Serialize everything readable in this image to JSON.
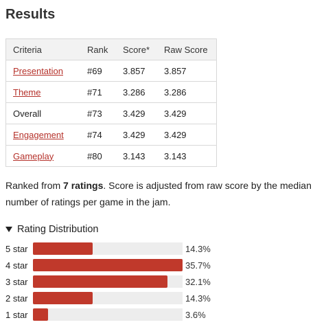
{
  "results": {
    "title": "Results",
    "headers": [
      "Criteria",
      "Rank",
      "Score*",
      "Raw Score"
    ],
    "rows": [
      {
        "criteria": "Presentation",
        "link": true,
        "rank": "#69",
        "score": "3.857",
        "raw": "3.857"
      },
      {
        "criteria": "Theme",
        "link": true,
        "rank": "#71",
        "score": "3.286",
        "raw": "3.286"
      },
      {
        "criteria": "Overall",
        "link": false,
        "rank": "#73",
        "score": "3.429",
        "raw": "3.429"
      },
      {
        "criteria": "Engagement",
        "link": true,
        "rank": "#74",
        "score": "3.429",
        "raw": "3.429"
      },
      {
        "criteria": "Gameplay",
        "link": true,
        "rank": "#80",
        "score": "3.143",
        "raw": "3.143"
      }
    ]
  },
  "summary": {
    "prefix": "Ranked from ",
    "ratings": "7 ratings",
    "suffix": ". Score is adjusted from raw score by the median number of ratings per game in the jam."
  },
  "distribution": {
    "title": "Rating Distribution",
    "max_percent": 35.7,
    "bar_color": "#c0392b",
    "rows": [
      {
        "label": "5 star",
        "percent": 14.3,
        "percent_text": "14.3%"
      },
      {
        "label": "4 star",
        "percent": 35.7,
        "percent_text": "35.7%"
      },
      {
        "label": "3 star",
        "percent": 32.1,
        "percent_text": "32.1%"
      },
      {
        "label": "2 star",
        "percent": 14.3,
        "percent_text": "14.3%"
      },
      {
        "label": "1 star",
        "percent": 3.6,
        "percent_text": "3.6%"
      }
    ]
  }
}
